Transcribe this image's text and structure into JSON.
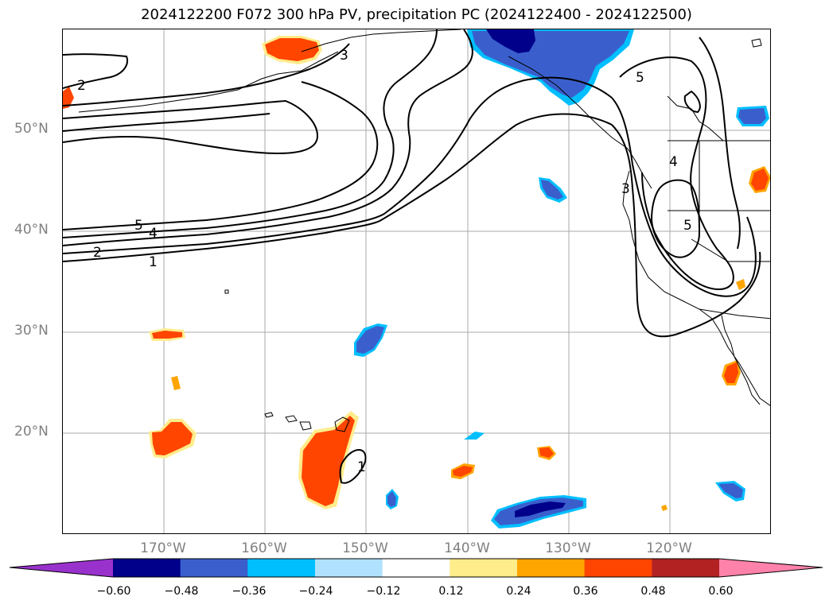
{
  "title": "2024122200 F072 300 hPa PV, precipitation PC (2024122400 - 2024122500)",
  "lat_labels": [
    "50°N",
    "40°N",
    "30°N",
    "20°N"
  ],
  "lon_labels": [
    "170°W",
    "160°W",
    "150°W",
    "140°W",
    "130°W",
    "120°W"
  ],
  "contour_labels": [
    "2",
    "3",
    "5",
    "4",
    "2",
    "1",
    "4",
    "5",
    "5",
    "3",
    "1"
  ],
  "colorbar": {
    "ticks": [
      "−0.60",
      "−0.48",
      "−0.36",
      "−0.24",
      "−0.12",
      "0.12",
      "0.24",
      "0.36",
      "0.48",
      "0.60"
    ],
    "colors": [
      "#9932cc",
      "#00008b",
      "#3a5fcd",
      "#00bfff",
      "#b0e2ff",
      "#ffffff",
      "#ffec8b",
      "#ffa500",
      "#ff4500",
      "#b22222",
      "#ff82ab"
    ]
  },
  "colors": {
    "contour": "#000000",
    "grid": "#aaaaaa",
    "pos_fill": "#ff4500",
    "pos_edge": "#ffa500",
    "pos_edge_light": "#ffec8b",
    "neg_fill": "#3a5fcd",
    "neg_core": "#00008b",
    "neg_edge": "#00bfff"
  }
}
